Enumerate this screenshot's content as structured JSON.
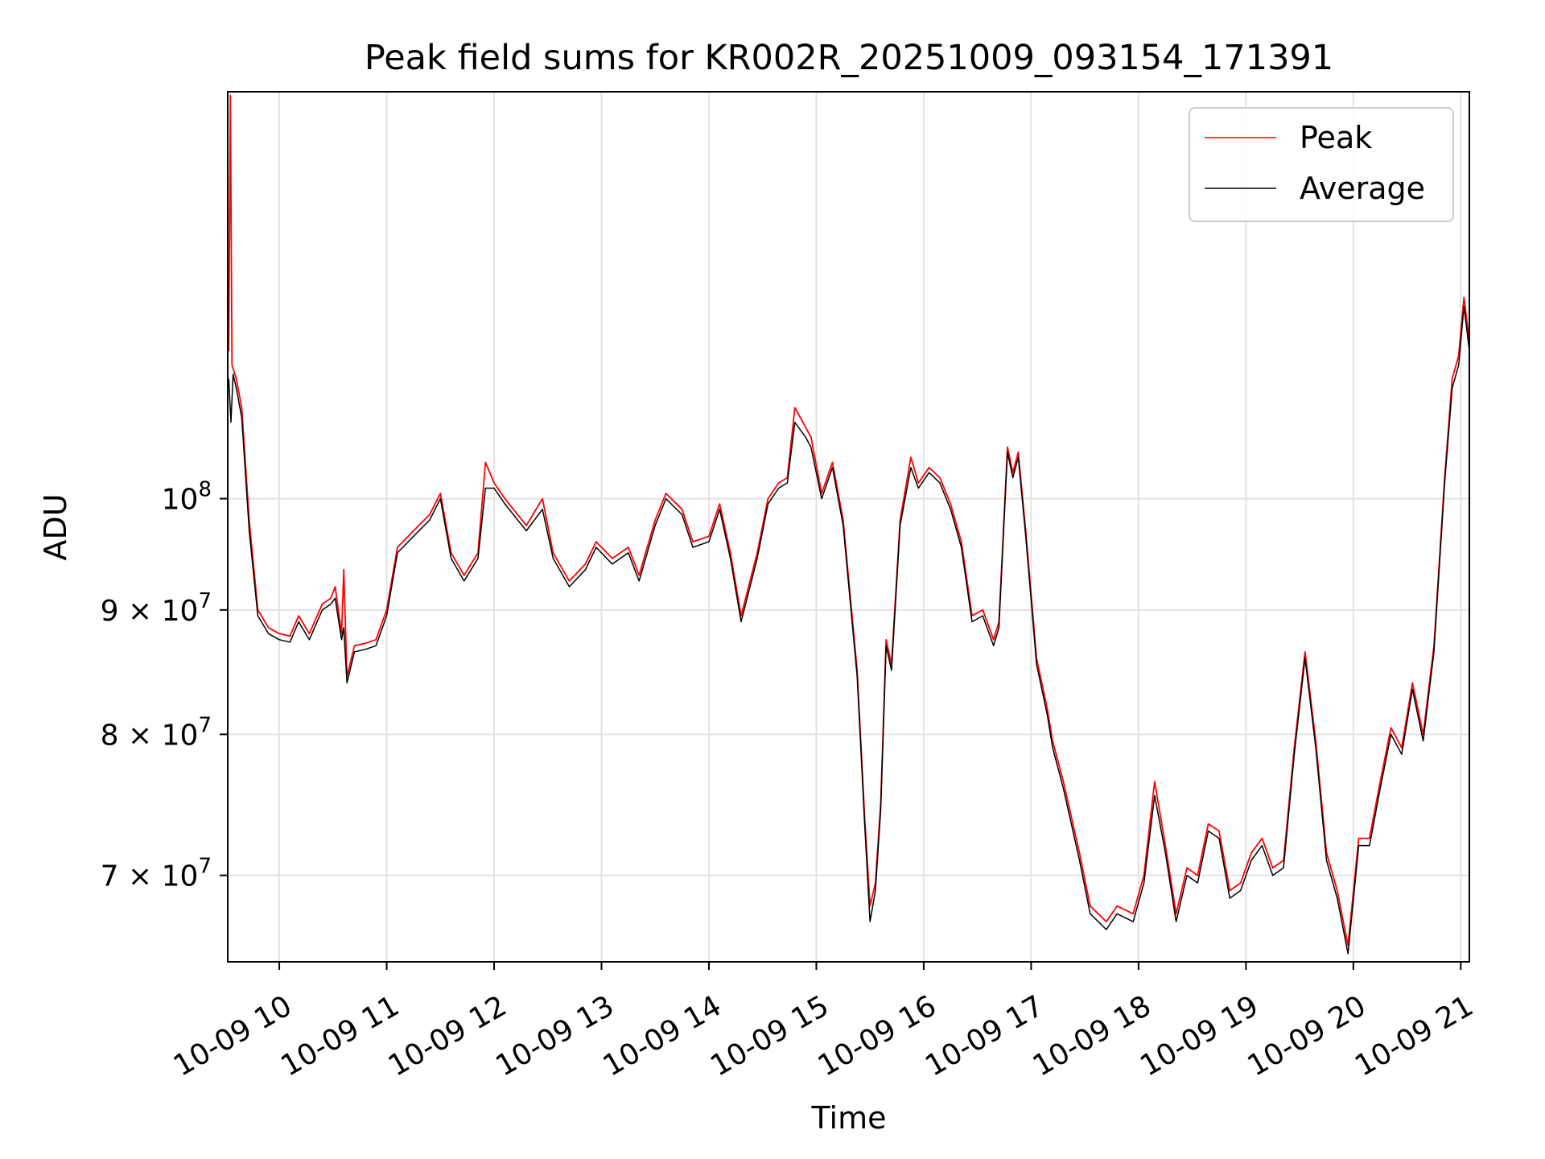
{
  "chart_data": {
    "type": "line",
    "title": "Peak field sums for KR002R_20251009_093154_171391",
    "xlabel": "Time",
    "ylabel": "ADU",
    "yscale": "log",
    "xlim": [
      9.52,
      21.08
    ],
    "ylim": [
      64500000,
      147000000
    ],
    "grid": true,
    "legend_position": "top-right",
    "x_ticks": [
      {
        "value": 10,
        "label": "10-09 10"
      },
      {
        "value": 11,
        "label": "10-09 11"
      },
      {
        "value": 12,
        "label": "10-09 12"
      },
      {
        "value": 13,
        "label": "10-09 13"
      },
      {
        "value": 14,
        "label": "10-09 14"
      },
      {
        "value": 15,
        "label": "10-09 15"
      },
      {
        "value": 16,
        "label": "10-09 16"
      },
      {
        "value": 17,
        "label": "10-09 17"
      },
      {
        "value": 18,
        "label": "10-09 18"
      },
      {
        "value": 19,
        "label": "10-09 19"
      },
      {
        "value": 20,
        "label": "10-09 20"
      },
      {
        "value": 21,
        "label": "10-09 21"
      }
    ],
    "y_ticks": [
      {
        "value": 70000000,
        "mantissa": "7",
        "exp": "7",
        "base": "10"
      },
      {
        "value": 80000000,
        "mantissa": "8",
        "exp": "7",
        "base": "10"
      },
      {
        "value": 90000000,
        "mantissa": "9",
        "exp": "7",
        "base": "10"
      },
      {
        "value": 100000000,
        "mantissa": "",
        "exp": "8",
        "base": "10"
      }
    ],
    "series": [
      {
        "name": "Peak",
        "color": "#ff0000",
        "points": [
          [
            9.53,
            115000000
          ],
          [
            9.545,
            146500000
          ],
          [
            9.56,
            113500000
          ],
          [
            9.6,
            112000000
          ],
          [
            9.65,
            109000000
          ],
          [
            9.72,
            98000000
          ],
          [
            9.8,
            90000000
          ],
          [
            9.9,
            88500000
          ],
          [
            10.0,
            88000000
          ],
          [
            10.1,
            87800000
          ],
          [
            10.18,
            89500000
          ],
          [
            10.28,
            88000000
          ],
          [
            10.4,
            90500000
          ],
          [
            10.48,
            91000000
          ],
          [
            10.52,
            92000000
          ],
          [
            10.58,
            88000000
          ],
          [
            10.6,
            93500000
          ],
          [
            10.63,
            84500000
          ],
          [
            10.7,
            87000000
          ],
          [
            10.8,
            87200000
          ],
          [
            10.9,
            87500000
          ],
          [
            11.0,
            90000000
          ],
          [
            11.1,
            95500000
          ],
          [
            11.25,
            97000000
          ],
          [
            11.4,
            98500000
          ],
          [
            11.5,
            100500000
          ],
          [
            11.6,
            95000000
          ],
          [
            11.72,
            93000000
          ],
          [
            11.85,
            95000000
          ],
          [
            11.92,
            103500000
          ],
          [
            12.0,
            101500000
          ],
          [
            12.1,
            100000000
          ],
          [
            12.3,
            97500000
          ],
          [
            12.45,
            100000000
          ],
          [
            12.55,
            95000000
          ],
          [
            12.7,
            92500000
          ],
          [
            12.85,
            94000000
          ],
          [
            12.95,
            96000000
          ],
          [
            13.1,
            94500000
          ],
          [
            13.25,
            95500000
          ],
          [
            13.35,
            93000000
          ],
          [
            13.5,
            98000000
          ],
          [
            13.6,
            100500000
          ],
          [
            13.75,
            99000000
          ],
          [
            13.85,
            96000000
          ],
          [
            14.0,
            96500000
          ],
          [
            14.1,
            99500000
          ],
          [
            14.2,
            95000000
          ],
          [
            14.3,
            89500000
          ],
          [
            14.45,
            95000000
          ],
          [
            14.55,
            100000000
          ],
          [
            14.65,
            101500000
          ],
          [
            14.73,
            102000000
          ],
          [
            14.8,
            109000000
          ],
          [
            14.9,
            107000000
          ],
          [
            14.95,
            106000000
          ],
          [
            15.05,
            100500000
          ],
          [
            15.15,
            103500000
          ],
          [
            15.25,
            98000000
          ],
          [
            15.38,
            85000000
          ],
          [
            15.45,
            74000000
          ],
          [
            15.5,
            68000000
          ],
          [
            15.55,
            69500000
          ],
          [
            15.6,
            75000000
          ],
          [
            15.65,
            87500000
          ],
          [
            15.7,
            85500000
          ],
          [
            15.78,
            98000000
          ],
          [
            15.88,
            104000000
          ],
          [
            15.95,
            101500000
          ],
          [
            16.05,
            103000000
          ],
          [
            16.15,
            102000000
          ],
          [
            16.25,
            99500000
          ],
          [
            16.35,
            96000000
          ],
          [
            16.45,
            89500000
          ],
          [
            16.55,
            90000000
          ],
          [
            16.65,
            87500000
          ],
          [
            16.7,
            89000000
          ],
          [
            16.78,
            105000000
          ],
          [
            16.83,
            102500000
          ],
          [
            16.88,
            104500000
          ],
          [
            16.95,
            97000000
          ],
          [
            17.05,
            86000000
          ],
          [
            17.15,
            82000000
          ],
          [
            17.2,
            79500000
          ],
          [
            17.3,
            76500000
          ],
          [
            17.45,
            71500000
          ],
          [
            17.55,
            68000000
          ],
          [
            17.7,
            67000000
          ],
          [
            17.8,
            68000000
          ],
          [
            17.95,
            67500000
          ],
          [
            18.05,
            70000000
          ],
          [
            18.15,
            76500000
          ],
          [
            18.25,
            72000000
          ],
          [
            18.35,
            67500000
          ],
          [
            18.45,
            70500000
          ],
          [
            18.55,
            70000000
          ],
          [
            18.65,
            73500000
          ],
          [
            18.75,
            73000000
          ],
          [
            18.85,
            69000000
          ],
          [
            18.95,
            69500000
          ],
          [
            19.05,
            71500000
          ],
          [
            19.15,
            72500000
          ],
          [
            19.25,
            70500000
          ],
          [
            19.35,
            71000000
          ],
          [
            19.45,
            79000000
          ],
          [
            19.55,
            86500000
          ],
          [
            19.65,
            79500000
          ],
          [
            19.75,
            71500000
          ],
          [
            19.85,
            69000000
          ],
          [
            19.95,
            65500000
          ],
          [
            20.05,
            72500000
          ],
          [
            20.15,
            72500000
          ],
          [
            20.25,
            76500000
          ],
          [
            20.35,
            80500000
          ],
          [
            20.45,
            79000000
          ],
          [
            20.55,
            84000000
          ],
          [
            20.65,
            80000000
          ],
          [
            20.75,
            87000000
          ],
          [
            20.85,
            102000000
          ],
          [
            20.92,
            112000000
          ],
          [
            20.98,
            114500000
          ],
          [
            21.03,
            121000000
          ],
          [
            21.08,
            116000000
          ]
        ]
      },
      {
        "name": "Average",
        "color": "#000000",
        "points": [
          [
            9.53,
            112000000
          ],
          [
            9.55,
            107500000
          ],
          [
            9.57,
            112500000
          ],
          [
            9.6,
            111000000
          ],
          [
            9.65,
            108000000
          ],
          [
            9.72,
            97000000
          ],
          [
            9.8,
            89500000
          ],
          [
            9.9,
            88000000
          ],
          [
            10.0,
            87500000
          ],
          [
            10.1,
            87300000
          ],
          [
            10.18,
            89000000
          ],
          [
            10.28,
            87500000
          ],
          [
            10.4,
            90000000
          ],
          [
            10.48,
            90500000
          ],
          [
            10.52,
            91000000
          ],
          [
            10.58,
            87500000
          ],
          [
            10.6,
            88500000
          ],
          [
            10.63,
            84000000
          ],
          [
            10.7,
            86500000
          ],
          [
            10.8,
            86700000
          ],
          [
            10.9,
            87000000
          ],
          [
            11.0,
            89500000
          ],
          [
            11.1,
            95000000
          ],
          [
            11.25,
            96500000
          ],
          [
            11.4,
            98000000
          ],
          [
            11.5,
            100000000
          ],
          [
            11.6,
            94500000
          ],
          [
            11.72,
            92500000
          ],
          [
            11.85,
            94500000
          ],
          [
            11.92,
            101000000
          ],
          [
            12.0,
            101000000
          ],
          [
            12.1,
            99500000
          ],
          [
            12.3,
            97000000
          ],
          [
            12.45,
            99000000
          ],
          [
            12.55,
            94500000
          ],
          [
            12.7,
            92000000
          ],
          [
            12.85,
            93500000
          ],
          [
            12.95,
            95500000
          ],
          [
            13.1,
            94000000
          ],
          [
            13.25,
            95000000
          ],
          [
            13.35,
            92500000
          ],
          [
            13.5,
            97500000
          ],
          [
            13.6,
            100000000
          ],
          [
            13.75,
            98500000
          ],
          [
            13.85,
            95500000
          ],
          [
            14.0,
            96000000
          ],
          [
            14.1,
            99000000
          ],
          [
            14.2,
            94500000
          ],
          [
            14.3,
            89000000
          ],
          [
            14.45,
            94500000
          ],
          [
            14.55,
            99500000
          ],
          [
            14.65,
            101000000
          ],
          [
            14.73,
            101500000
          ],
          [
            14.8,
            107500000
          ],
          [
            14.9,
            106000000
          ],
          [
            14.95,
            105000000
          ],
          [
            15.05,
            100000000
          ],
          [
            15.15,
            103000000
          ],
          [
            15.25,
            97500000
          ],
          [
            15.38,
            84500000
          ],
          [
            15.45,
            73500000
          ],
          [
            15.5,
            67000000
          ],
          [
            15.55,
            69000000
          ],
          [
            15.6,
            74500000
          ],
          [
            15.65,
            87000000
          ],
          [
            15.7,
            85000000
          ],
          [
            15.78,
            97500000
          ],
          [
            15.88,
            103000000
          ],
          [
            15.95,
            101000000
          ],
          [
            16.05,
            102500000
          ],
          [
            16.15,
            101500000
          ],
          [
            16.25,
            99000000
          ],
          [
            16.35,
            95500000
          ],
          [
            16.45,
            89000000
          ],
          [
            16.55,
            89500000
          ],
          [
            16.65,
            87000000
          ],
          [
            16.7,
            88500000
          ],
          [
            16.78,
            104500000
          ],
          [
            16.83,
            102000000
          ],
          [
            16.88,
            104000000
          ],
          [
            16.95,
            96500000
          ],
          [
            17.05,
            85500000
          ],
          [
            17.15,
            81500000
          ],
          [
            17.2,
            79000000
          ],
          [
            17.3,
            76000000
          ],
          [
            17.45,
            71000000
          ],
          [
            17.55,
            67500000
          ],
          [
            17.7,
            66500000
          ],
          [
            17.8,
            67500000
          ],
          [
            17.95,
            67000000
          ],
          [
            18.05,
            69500000
          ],
          [
            18.15,
            75500000
          ],
          [
            18.25,
            71500000
          ],
          [
            18.35,
            67000000
          ],
          [
            18.45,
            70000000
          ],
          [
            18.55,
            69500000
          ],
          [
            18.65,
            73000000
          ],
          [
            18.75,
            72500000
          ],
          [
            18.85,
            68500000
          ],
          [
            18.95,
            69000000
          ],
          [
            19.05,
            71000000
          ],
          [
            19.15,
            72000000
          ],
          [
            19.25,
            70000000
          ],
          [
            19.35,
            70500000
          ],
          [
            19.45,
            78500000
          ],
          [
            19.55,
            86000000
          ],
          [
            19.65,
            79000000
          ],
          [
            19.75,
            71000000
          ],
          [
            19.85,
            68500000
          ],
          [
            19.95,
            65000000
          ],
          [
            20.05,
            72000000
          ],
          [
            20.15,
            72000000
          ],
          [
            20.25,
            76000000
          ],
          [
            20.35,
            80000000
          ],
          [
            20.45,
            78500000
          ],
          [
            20.55,
            83500000
          ],
          [
            20.65,
            79500000
          ],
          [
            20.75,
            86500000
          ],
          [
            20.85,
            101500000
          ],
          [
            20.92,
            111000000
          ],
          [
            20.98,
            113500000
          ],
          [
            21.03,
            120000000
          ],
          [
            21.08,
            115000000
          ]
        ]
      }
    ]
  }
}
